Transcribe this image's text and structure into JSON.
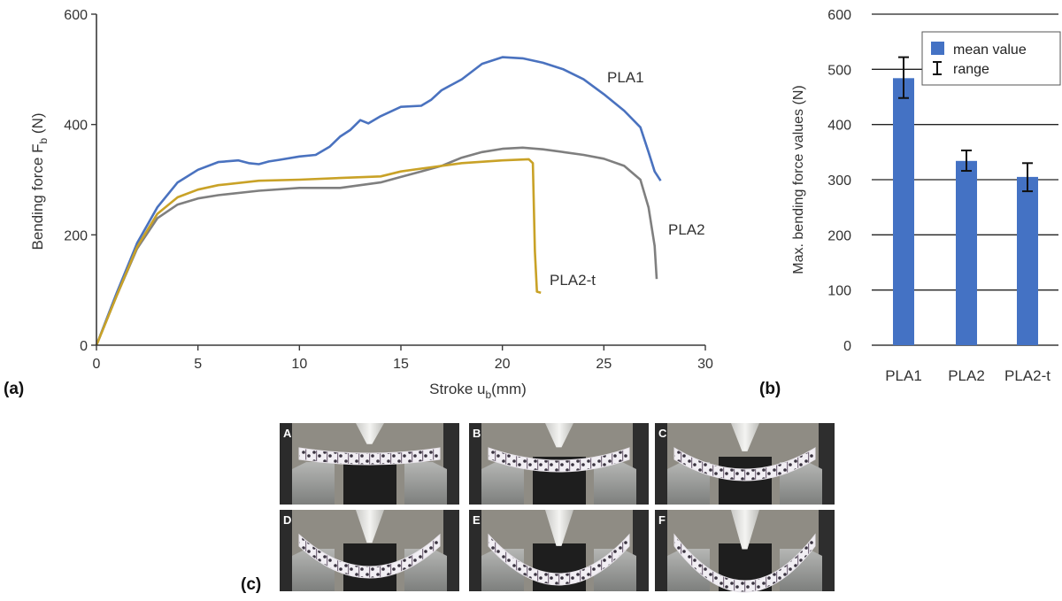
{
  "chart_data": [
    {
      "type": "line",
      "panel": "(a)",
      "xlabel": "Stroke u",
      "xlabel_sub": "b",
      "xlabel_unit": "(mm)",
      "ylabel": "Bending force F",
      "ylabel_sub": "b",
      "ylabel_unit": " (N)",
      "xlim": [
        0,
        30
      ],
      "ylim": [
        0,
        600
      ],
      "x_ticks": [
        0,
        5,
        10,
        15,
        20,
        25,
        30
      ],
      "y_ticks": [
        0,
        200,
        400,
        600
      ],
      "series": [
        {
          "name": "PLA1",
          "color": "#4a72bf",
          "x": [
            0,
            1,
            2,
            3,
            4,
            5,
            6,
            7,
            7.5,
            8,
            8.5,
            9,
            10,
            10.8,
            11.5,
            12,
            12.5,
            13,
            13.4,
            14,
            15,
            16,
            16.5,
            17,
            18,
            19,
            20,
            21,
            22,
            23,
            24,
            25,
            26,
            26.8,
            27.2,
            27.5,
            27.8
          ],
          "y": [
            0,
            95,
            185,
            250,
            295,
            318,
            332,
            335,
            330,
            328,
            333,
            336,
            342,
            345,
            360,
            378,
            390,
            408,
            402,
            415,
            432,
            434,
            445,
            462,
            482,
            510,
            522,
            520,
            512,
            500,
            482,
            455,
            425,
            395,
            350,
            315,
            298
          ]
        },
        {
          "name": "PLA2",
          "color": "#7f7f7f",
          "x": [
            0,
            1,
            2,
            3,
            4,
            5,
            6,
            8,
            10,
            12,
            13,
            14,
            15,
            16,
            17,
            18,
            19,
            20,
            21,
            22,
            23,
            24,
            25,
            26,
            26.8,
            27.2,
            27.5,
            27.6
          ],
          "y": [
            0,
            90,
            175,
            230,
            255,
            266,
            272,
            280,
            285,
            285,
            290,
            295,
            305,
            315,
            325,
            340,
            350,
            356,
            358,
            355,
            350,
            345,
            338,
            325,
            300,
            250,
            180,
            120
          ]
        },
        {
          "name": "PLA2-t",
          "color": "#c9a227",
          "x": [
            0,
            1,
            2,
            3,
            4,
            5,
            6,
            8,
            10,
            12,
            14,
            15,
            16,
            18,
            20,
            21.3,
            21.5,
            21.6,
            21.7,
            21.9
          ],
          "y": [
            0,
            90,
            178,
            238,
            268,
            282,
            290,
            298,
            300,
            303,
            306,
            315,
            320,
            330,
            335,
            337,
            330,
            170,
            97,
            95
          ]
        }
      ],
      "annotations": [
        "PLA1",
        "PLA2",
        "PLA2-t"
      ]
    },
    {
      "type": "bar",
      "panel": "(b)",
      "ylabel": "Max. bending force values (N)",
      "categories": [
        "PLA1",
        "PLA2",
        "PLA2-t"
      ],
      "values": [
        484,
        334,
        305
      ],
      "error_low": [
        448,
        316,
        279
      ],
      "error_high": [
        522,
        353,
        330
      ],
      "ylim": [
        0,
        600
      ],
      "y_ticks": [
        0,
        100,
        200,
        300,
        400,
        500,
        600
      ],
      "bar_color": "#4472c4",
      "legend": [
        "mean value",
        "range"
      ],
      "legend_position": "top-right",
      "grid": true
    }
  ],
  "photos": {
    "panel": "(c)",
    "frames": [
      "A",
      "B",
      "C",
      "D",
      "E",
      "F"
    ]
  },
  "colors": {
    "axis": "#3a3a3a",
    "photo_bg": "#8f8c84"
  }
}
